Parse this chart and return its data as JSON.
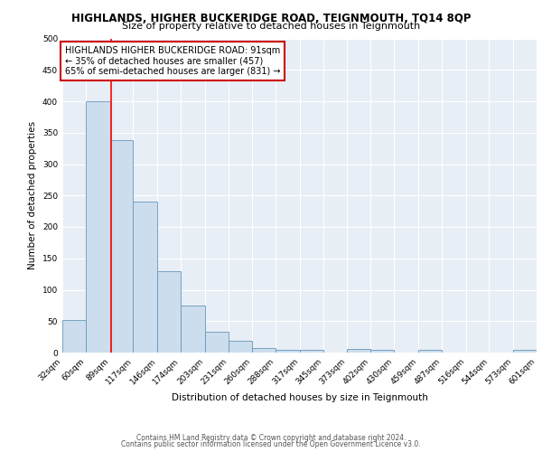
{
  "title": "HIGHLANDS, HIGHER BUCKERIDGE ROAD, TEIGNMOUTH, TQ14 8QP",
  "subtitle": "Size of property relative to detached houses in Teignmouth",
  "xlabel": "Distribution of detached houses by size in Teignmouth",
  "ylabel": "Number of detached properties",
  "bar_heights": [
    52,
    400,
    338,
    240,
    130,
    75,
    33,
    18,
    7,
    5,
    4,
    0,
    6,
    5,
    0,
    5,
    0,
    0,
    0,
    4
  ],
  "bin_edges": [
    32,
    60,
    89,
    117,
    146,
    174,
    203,
    231,
    260,
    288,
    317,
    345,
    373,
    402,
    430,
    459,
    487,
    516,
    544,
    573,
    601
  ],
  "tick_labels": [
    "32sqm",
    "60sqm",
    "89sqm",
    "117sqm",
    "146sqm",
    "174sqm",
    "203sqm",
    "231sqm",
    "260sqm",
    "288sqm",
    "317sqm",
    "345sqm",
    "373sqm",
    "402sqm",
    "430sqm",
    "459sqm",
    "487sqm",
    "516sqm",
    "544sqm",
    "573sqm",
    "601sqm"
  ],
  "bar_color": "#ccdded",
  "bar_edge_color": "#6699bb",
  "red_line_x": 91,
  "ylim": [
    0,
    500
  ],
  "yticks": [
    0,
    50,
    100,
    150,
    200,
    250,
    300,
    350,
    400,
    450,
    500
  ],
  "annotation_text": "HIGHLANDS HIGHER BUCKERIDGE ROAD: 91sqm\n← 35% of detached houses are smaller (457)\n65% of semi-detached houses are larger (831) →",
  "annotation_box_facecolor": "#ffffff",
  "annotation_box_edgecolor": "#cc0000",
  "footer_line1": "Contains HM Land Registry data © Crown copyright and database right 2024.",
  "footer_line2": "Contains public sector information licensed under the Open Government Licence v3.0.",
  "bg_color": "#e8eef5",
  "grid_color": "#ffffff",
  "title_fontsize": 8.5,
  "subtitle_fontsize": 8,
  "axis_label_fontsize": 7.5,
  "tick_fontsize": 6.5,
  "annotation_fontsize": 7,
  "footer_fontsize": 5.5
}
